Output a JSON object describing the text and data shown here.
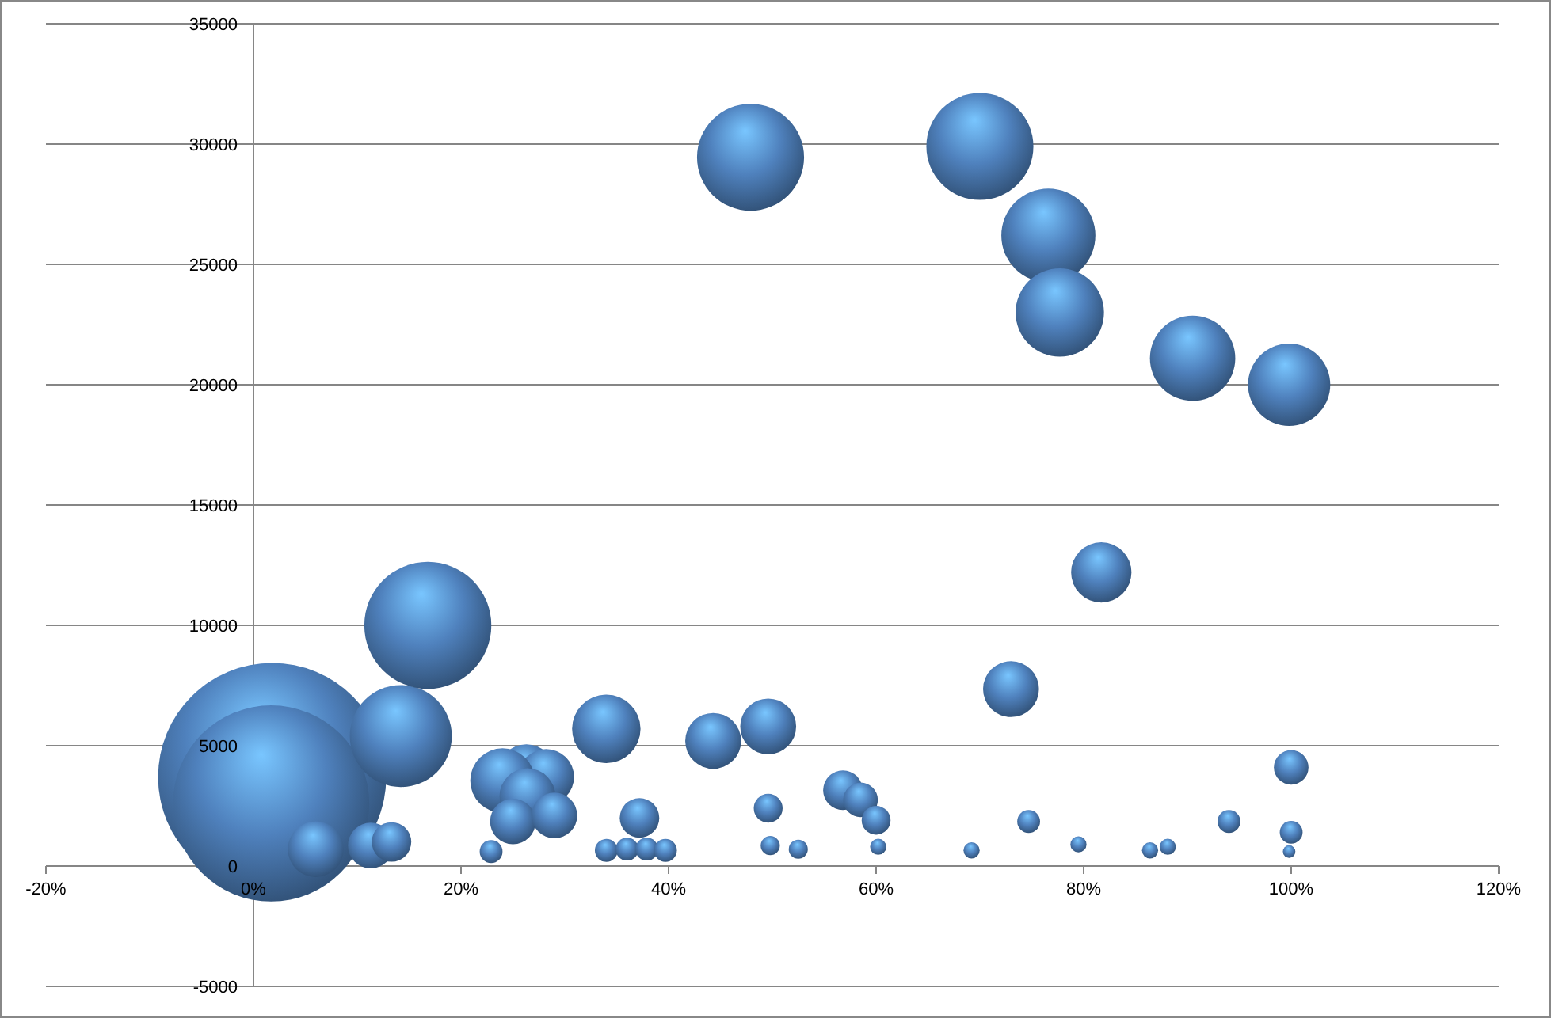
{
  "chart_data": {
    "type": "bubble",
    "x": [
      1.8,
      1.7,
      6,
      11.3,
      13.3,
      14.2,
      16.8,
      22.9,
      26.3,
      28.2,
      24,
      26.4,
      25,
      29,
      34,
      34,
      36,
      37.9,
      39.7,
      37.2,
      44.3,
      49.6,
      49.6,
      49.8,
      52.5,
      56.8,
      58.5,
      60,
      60.2,
      69.2,
      73,
      74.7,
      79.5,
      86.4,
      88.1,
      94,
      100,
      100,
      99.8,
      47.9,
      70,
      76.6,
      77.7,
      90.5,
      99.8,
      81.7
    ],
    "series": [
      {
        "color": "#4f81bd",
        "values": [
          3700,
          2600,
          700,
          850,
          1000,
          5400,
          10000,
          600,
          3900,
          3700,
          3550,
          2900,
          1850,
          2100,
          5700,
          650,
          700,
          700,
          650,
          2000,
          5200,
          5800,
          2400,
          850,
          700,
          3150,
          2750,
          1900,
          800,
          650,
          7350,
          1850,
          900,
          650,
          800,
          1850,
          4100,
          1400,
          600,
          29450,
          29900,
          26200,
          23000,
          21100,
          20000,
          12200
        ],
        "sizes": [
          1,
          0.74,
          0.06,
          0.04,
          0.03,
          0.2,
          0.31,
          0.01,
          0.06,
          0.06,
          0.08,
          0.06,
          0.04,
          0.04,
          0.09,
          0.01,
          0.01,
          0.01,
          0.01,
          0.03,
          0.06,
          0.06,
          0.016,
          0.007,
          0.007,
          0.03,
          0.023,
          0.016,
          0.005,
          0.005,
          0.06,
          0.01,
          0.005,
          0.005,
          0.005,
          0.01,
          0.023,
          0.01,
          0.003,
          0.22,
          0.22,
          0.17,
          0.15,
          0.14,
          0.13,
          0.07
        ]
      }
    ],
    "xlim": [
      -20,
      120
    ],
    "xticks": [
      {
        "value": -20,
        "label": "-20%"
      },
      {
        "value": 0,
        "label": "0%"
      },
      {
        "value": 20,
        "label": "20%"
      },
      {
        "value": 40,
        "label": "40%"
      },
      {
        "value": 60,
        "label": "60%"
      },
      {
        "value": 80,
        "label": "80%"
      },
      {
        "value": 100,
        "label": "100%"
      },
      {
        "value": 120,
        "label": "120%"
      }
    ],
    "ylim": [
      -5000,
      35000
    ],
    "yticks": [
      -5000,
      0,
      5000,
      10000,
      15000,
      20000,
      25000,
      30000,
      35000
    ],
    "grid": "y"
  }
}
